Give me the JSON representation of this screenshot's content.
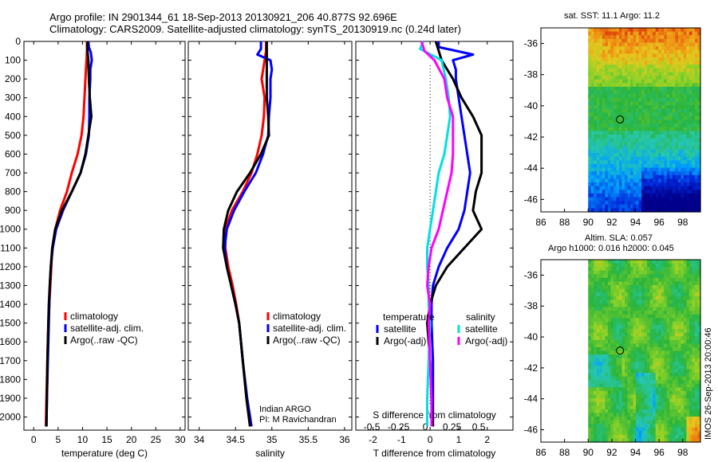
{
  "title": {
    "line1": "Argo profile: IN 2901344_61 18-Sep-2013 20130921_206 40.877S 92.696E",
    "line2": "Climatology: CARS2009. Satellite-adjusted climatology: synTS_20130919.nc (0.24d later)"
  },
  "watermark": "IMOS 26-Sep-2013 20:00:46",
  "colors": {
    "red": "#ff0000",
    "blue": "#0000ff",
    "black": "#000000",
    "cyan": "#00e0e0",
    "magenta": "#ff00ff"
  },
  "chart_data": [
    {
      "type": "line",
      "xlabel": "temperature (deg C)",
      "xlim": [
        -2,
        31
      ],
      "xticks": [
        0,
        5,
        10,
        15,
        20,
        25,
        30
      ],
      "ylim": [
        2070,
        0
      ],
      "yticks": [
        0,
        100,
        200,
        300,
        400,
        500,
        600,
        700,
        800,
        900,
        1000,
        1100,
        1200,
        1300,
        1400,
        1500,
        1600,
        1700,
        1800,
        1900,
        2000
      ],
      "legend": [
        "climatology",
        "satellite-adj. clim.",
        "Argo(..raw -QC)"
      ],
      "series": [
        {
          "name": "climatology",
          "color": "#ff0000",
          "depth": [
            0,
            50,
            100,
            200,
            300,
            400,
            500,
            600,
            700,
            800,
            900,
            1000,
            1100,
            1200,
            1300,
            1400,
            1500,
            1700,
            1900,
            2050
          ],
          "values": [
            10.9,
            10.9,
            10.8,
            10.6,
            10.4,
            10.2,
            9.8,
            9.0,
            7.8,
            6.8,
            5.4,
            4.4,
            3.8,
            3.6,
            3.4,
            3.2,
            3.0,
            2.8,
            2.6,
            2.5
          ]
        },
        {
          "name": "satellite-adj. clim.",
          "color": "#0000ff",
          "depth": [
            0,
            30,
            60,
            100,
            150,
            200,
            300,
            400,
            500,
            600,
            700,
            800,
            900,
            1000,
            1100,
            1200,
            1300,
            1400,
            1500,
            1700,
            1900,
            2050
          ],
          "values": [
            11.2,
            11.3,
            11.7,
            11.9,
            11.6,
            11.6,
            11.4,
            11.4,
            11.3,
            10.7,
            9.6,
            7.8,
            6.0,
            4.6,
            3.9,
            3.5,
            3.3,
            3.2,
            3.1,
            2.9,
            2.7,
            2.6
          ]
        },
        {
          "name": "Argo(..raw -QC)",
          "color": "#000000",
          "depth": [
            0,
            50,
            100,
            200,
            300,
            400,
            500,
            600,
            700,
            800,
            900,
            1000,
            1100,
            1200,
            1300,
            1400,
            1500,
            1700,
            1900,
            2050
          ],
          "values": [
            11.0,
            11.0,
            11.2,
            11.3,
            11.5,
            11.8,
            11.2,
            10.6,
            9.6,
            7.8,
            5.8,
            4.4,
            3.8,
            3.5,
            3.3,
            3.1,
            3.0,
            2.8,
            2.7,
            2.6
          ]
        }
      ]
    },
    {
      "type": "line",
      "xlabel": "salinity",
      "xlim": [
        33.85,
        36.1
      ],
      "xticks": [
        34,
        34.5,
        35,
        35.5,
        36
      ],
      "xticklabels": [
        "34",
        "34.5",
        "35",
        "35.5",
        "36"
      ],
      "ylim": [
        2070,
        0
      ],
      "legend": [
        "climatology",
        "satellite-adj. clim.",
        "Argo(..raw -QC)"
      ],
      "annotation": [
        "Indian ARGO",
        "PI: M Ravichandran"
      ],
      "series": [
        {
          "name": "climatology",
          "color": "#ff0000",
          "depth": [
            0,
            50,
            100,
            200,
            300,
            400,
            500,
            600,
            700,
            800,
            900,
            1000,
            1100,
            1200,
            1300,
            1400,
            1500,
            1700,
            1900,
            2050
          ],
          "values": [
            34.92,
            34.92,
            34.9,
            34.86,
            34.9,
            34.89,
            34.86,
            34.8,
            34.72,
            34.6,
            34.45,
            34.36,
            34.36,
            34.4,
            34.46,
            34.51,
            34.55,
            34.6,
            34.65,
            34.7
          ]
        },
        {
          "name": "satellite-adj. clim.",
          "color": "#0000ff",
          "depth": [
            0,
            40,
            70,
            100,
            150,
            200,
            300,
            400,
            500,
            600,
            700,
            800,
            900,
            1000,
            1100,
            1200,
            1300,
            1400,
            1500,
            1700,
            1900,
            2050
          ],
          "values": [
            34.85,
            34.85,
            34.8,
            34.98,
            35.0,
            34.98,
            34.98,
            34.96,
            34.95,
            34.88,
            34.78,
            34.62,
            34.48,
            34.38,
            34.35,
            34.38,
            34.44,
            34.5,
            34.55,
            34.6,
            34.66,
            34.72
          ]
        },
        {
          "name": "Argo(..raw -QC)",
          "color": "#000000",
          "depth": [
            0,
            50,
            100,
            200,
            300,
            400,
            500,
            600,
            700,
            800,
            900,
            1000,
            1100,
            1200,
            1300,
            1400,
            1500,
            1700,
            1900,
            2050
          ],
          "values": [
            34.93,
            34.93,
            34.93,
            34.93,
            34.93,
            34.95,
            34.96,
            34.85,
            34.7,
            34.52,
            34.4,
            34.34,
            34.33,
            34.38,
            34.44,
            34.5,
            34.55,
            34.6,
            34.65,
            34.7
          ]
        }
      ]
    },
    {
      "type": "line",
      "xlabel": "T difference from climatology",
      "xlabel2": "S difference from climatology",
      "xlim": [
        -2.6,
        2.9
      ],
      "xticks": [
        -2,
        -1,
        0,
        1,
        2
      ],
      "xticks2": [
        -0.5,
        -0.25,
        0,
        0.25,
        0.5
      ],
      "xticks2labels": [
        "-0.5",
        "-0.25",
        "0",
        "0.25",
        "0.5"
      ],
      "ylim": [
        2070,
        0
      ],
      "legend_groups": [
        {
          "title": "temperature",
          "entries": [
            "satellite",
            "Argo(-adj)"
          ]
        },
        {
          "title": "salinity",
          "entries": [
            "satellite",
            "Argo(-adj)"
          ]
        }
      ],
      "series": [
        {
          "name": "temperature satellite",
          "color": "#0000ff",
          "depth": [
            0,
            30,
            60,
            70,
            100,
            150,
            200,
            300,
            400,
            500,
            600,
            700,
            800,
            900,
            1000,
            1100,
            1200,
            1300,
            1400,
            1500,
            1700,
            1900,
            2050
          ],
          "values": [
            0.3,
            0.3,
            1.2,
            1.5,
            0.8,
            0.9,
            0.9,
            1.0,
            1.1,
            1.2,
            1.3,
            1.4,
            1.3,
            1.2,
            1.0,
            0.6,
            0.3,
            0.1,
            0.05,
            0.05,
            0.1,
            0.1,
            0.1
          ]
        },
        {
          "name": "temperature Argo(-adj)",
          "color": "#000000",
          "depth": [
            0,
            50,
            100,
            200,
            300,
            400,
            500,
            600,
            700,
            800,
            900,
            1000,
            1100,
            1200,
            1300,
            1400,
            1500,
            1700,
            1900,
            2050
          ],
          "values": [
            0.2,
            0.3,
            0.4,
            0.8,
            1.1,
            1.5,
            1.8,
            1.8,
            1.8,
            1.6,
            1.5,
            1.8,
            1.2,
            0.6,
            0.2,
            0.0,
            -0.1,
            0.0,
            0.05,
            0.1
          ]
        },
        {
          "name": "salinity satellite",
          "color": "#00e0e0",
          "depth": [
            0,
            40,
            100,
            200,
            300,
            400,
            500,
            600,
            700,
            800,
            900,
            1000,
            1100,
            1200,
            1300,
            1400,
            1500,
            1700,
            1900,
            2050
          ],
          "values": [
            -0.25,
            -0.35,
            0.4,
            0.55,
            0.65,
            0.7,
            0.6,
            0.5,
            0.3,
            0.2,
            0.1,
            0.0,
            -0.1,
            -0.1,
            -0.05,
            -0.05,
            0.0,
            -0.05,
            -0.1,
            -0.1
          ]
        },
        {
          "name": "salinity Argo(-adj)",
          "color": "#ff00ff",
          "depth": [
            0,
            50,
            100,
            200,
            300,
            400,
            500,
            600,
            700,
            800,
            900,
            1000,
            1100,
            1200,
            1300,
            1400,
            1500,
            1700,
            1900,
            2050
          ],
          "values": [
            -0.3,
            -0.2,
            0.15,
            0.5,
            0.6,
            0.8,
            0.8,
            0.8,
            0.75,
            0.6,
            0.45,
            0.3,
            0.05,
            -0.05,
            -0.1,
            0.0,
            -0.05,
            0.0,
            0.05,
            0.05
          ]
        }
      ]
    },
    {
      "type": "heatmap",
      "title": "sat. SST: 11.1 Argo: 11.2",
      "xlim": [
        86,
        99.5
      ],
      "ylim": [
        -46.8,
        -35
      ],
      "xticks": [
        86,
        88,
        90,
        92,
        94,
        96,
        98
      ],
      "yticks": [
        -36,
        -38,
        -40,
        -42,
        -44,
        -46
      ],
      "data_lon_range": [
        90,
        99.5
      ],
      "marker": {
        "lon": 92.696,
        "lat": -40.877
      }
    },
    {
      "type": "heatmap",
      "title": "Altim. SLA: 0.057",
      "subtitle": "Argo h1000: 0.016 h2000: 0.045",
      "xlim": [
        86,
        99.5
      ],
      "ylim": [
        -46.8,
        -35
      ],
      "xticks": [
        86,
        88,
        90,
        92,
        94,
        96,
        98
      ],
      "yticks": [
        -36,
        -38,
        -40,
        -42,
        -44,
        -46
      ],
      "data_lon_range": [
        90,
        99.5
      ],
      "marker": {
        "lon": 92.696,
        "lat": -40.877
      }
    }
  ]
}
